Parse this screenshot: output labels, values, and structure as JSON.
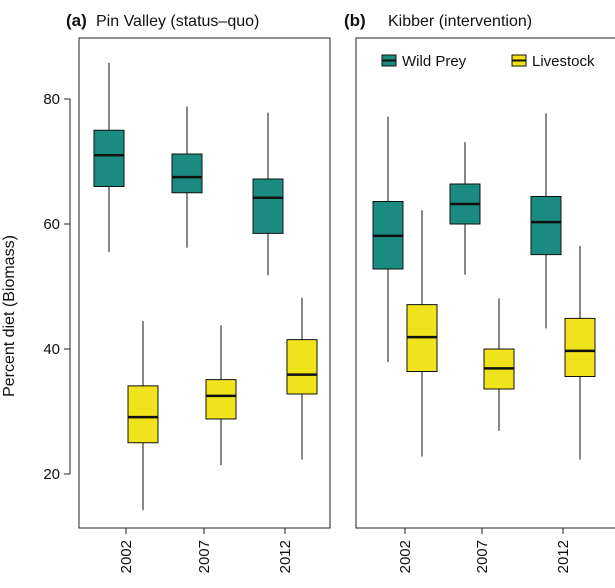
{
  "chart_data": [
    {
      "type": "boxplot",
      "panel_label": "(a)",
      "title": "Pin Valley (status–quo)",
      "ylabel": "Percent diet (Biomass)",
      "ylim": [
        10,
        88
      ],
      "yticks": [
        20,
        40,
        60,
        80
      ],
      "categories": [
        "2002",
        "2007",
        "2012"
      ],
      "grid": false,
      "series": [
        {
          "name": "Wild Prey",
          "color": "#1b8a80",
          "boxes": [
            {
              "min": 55.5,
              "q1": 66,
              "median": 71,
              "q3": 75,
              "max": 85.8
            },
            {
              "min": 56.2,
              "q1": 65,
              "median": 67.5,
              "q3": 71.2,
              "max": 78.8
            },
            {
              "min": 51.8,
              "q1": 58.5,
              "median": 64.2,
              "q3": 67.2,
              "max": 77.8
            }
          ]
        },
        {
          "name": "Livestock",
          "color": "#f0e31c",
          "boxes": [
            {
              "min": 14.2,
              "q1": 25,
              "median": 29.1,
              "q3": 34.1,
              "max": 44.5
            },
            {
              "min": 21.4,
              "q1": 28.8,
              "median": 32.5,
              "q3": 35.1,
              "max": 43.8
            },
            {
              "min": 22.3,
              "q1": 32.8,
              "median": 35.9,
              "q3": 41.5,
              "max": 48.2
            }
          ]
        }
      ]
    },
    {
      "type": "boxplot",
      "panel_label": "(b)",
      "title": "Kibber (intervention)",
      "ylim": [
        10,
        88
      ],
      "categories": [
        "2002",
        "2007",
        "2012"
      ],
      "legend": {
        "position": "top",
        "entries": [
          "Wild Prey",
          "Livestock"
        ]
      },
      "grid": false,
      "series": [
        {
          "name": "Wild Prey",
          "color": "#1b8a80",
          "boxes": [
            {
              "min": 37.9,
              "q1": 52.8,
              "median": 58.1,
              "q3": 63.6,
              "max": 77.2
            },
            {
              "min": 51.9,
              "q1": 60,
              "median": 63.2,
              "q3": 66.4,
              "max": 73.1
            },
            {
              "min": 43.3,
              "q1": 55.1,
              "median": 60.3,
              "q3": 64.4,
              "max": 77.7
            }
          ]
        },
        {
          "name": "Livestock",
          "color": "#f0e31c",
          "boxes": [
            {
              "min": 22.8,
              "q1": 36.4,
              "median": 41.9,
              "q3": 47.1,
              "max": 62.2
            },
            {
              "min": 26.9,
              "q1": 33.6,
              "median": 36.9,
              "q3": 40,
              "max": 48.1
            },
            {
              "min": 22.3,
              "q1": 35.6,
              "median": 39.7,
              "q3": 44.9,
              "max": 56.5
            }
          ]
        }
      ]
    }
  ]
}
